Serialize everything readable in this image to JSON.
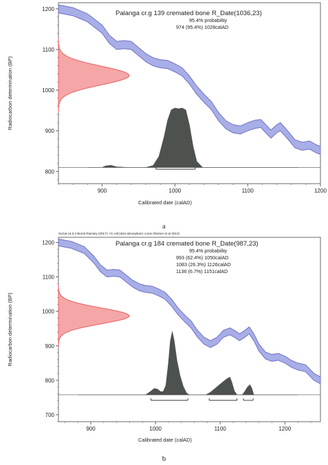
{
  "chart_data": [
    {
      "type": "area",
      "panel_caption": "a",
      "header_note": "",
      "title": "Palanga cr.g 139 cremated bone R_Date(1036,23)",
      "probability_label": "95.4% probability",
      "ranges_text": [
        "974 (95.4%) 1028calAD"
      ],
      "ranges": [
        {
          "from": 974,
          "to": 1028
        }
      ],
      "xlabel": "Calibrated date (calAD)",
      "ylabel": "Radiocarbon determination (BP)",
      "xlim": [
        840,
        1200
      ],
      "ylim": [
        770,
        1215
      ],
      "xticks": [
        900,
        1000,
        1100,
        1200
      ],
      "yticks": [
        800,
        900,
        1000,
        1100,
        1200
      ],
      "c14_date": {
        "mean": 1036,
        "sd": 23
      },
      "calibration_curve": [
        [
          840,
          1200
        ],
        [
          860,
          1193
        ],
        [
          880,
          1178
        ],
        [
          900,
          1150
        ],
        [
          910,
          1125
        ],
        [
          920,
          1110
        ],
        [
          930,
          1112
        ],
        [
          940,
          1110
        ],
        [
          950,
          1095
        ],
        [
          960,
          1080
        ],
        [
          970,
          1070
        ],
        [
          980,
          1065
        ],
        [
          990,
          1063
        ],
        [
          1000,
          1055
        ],
        [
          1010,
          1045
        ],
        [
          1020,
          1025
        ],
        [
          1030,
          1000
        ],
        [
          1040,
          980
        ],
        [
          1050,
          962
        ],
        [
          1060,
          935
        ],
        [
          1070,
          915
        ],
        [
          1080,
          905
        ],
        [
          1090,
          902
        ],
        [
          1100,
          910
        ],
        [
          1110,
          916
        ],
        [
          1118,
          918
        ],
        [
          1125,
          905
        ],
        [
          1132,
          892
        ],
        [
          1140,
          905
        ],
        [
          1145,
          910
        ],
        [
          1155,
          890
        ],
        [
          1165,
          868
        ],
        [
          1175,
          862
        ],
        [
          1185,
          865
        ],
        [
          1195,
          855
        ],
        [
          1200,
          852
        ]
      ],
      "curve_band_bp": 10,
      "calibrated_distribution": [
        [
          840,
          0
        ],
        [
          900,
          0
        ],
        [
          905,
          0.025
        ],
        [
          912,
          0.035
        ],
        [
          920,
          0.01
        ],
        [
          935,
          0
        ],
        [
          960,
          0
        ],
        [
          970,
          0.03
        ],
        [
          978,
          0.18
        ],
        [
          985,
          0.5
        ],
        [
          990,
          0.78
        ],
        [
          995,
          0.95
        ],
        [
          1000,
          0.98
        ],
        [
          1005,
          0.97
        ],
        [
          1010,
          0.98
        ],
        [
          1015,
          0.95
        ],
        [
          1020,
          0.7
        ],
        [
          1025,
          0.35
        ],
        [
          1030,
          0.1
        ],
        [
          1038,
          0
        ],
        [
          1200,
          0
        ]
      ],
      "colors": {
        "curve": "#7070c8",
        "curve_fill": "#a8aee6",
        "radiocarbon": "#e85f5f",
        "radiocarbon_fill": "#f5a6a6",
        "distribution": "#4e524e"
      }
    },
    {
      "type": "area",
      "panel_caption": "b",
      "header_note": "OxCal v4.3.2 Bronk Ramsey (2017); r:5; IntCal13 atmospheric curve (Reimer et al 2013)",
      "title": "Palanga cr.g 184 cremated bone R_Date(987,23)",
      "probability_label": "95.4% probability",
      "ranges_text": [
        "993 (62.4%) 1050calAD",
        "1083 (26.3%) 1126calAD",
        "1136 (6.7%) 1151calAD"
      ],
      "ranges": [
        {
          "from": 993,
          "to": 1050
        },
        {
          "from": 1083,
          "to": 1126
        },
        {
          "from": 1136,
          "to": 1151
        }
      ],
      "xlabel": "Calibrated date (calAD)",
      "ylabel": "Radiocarbon determination (BP)",
      "xlim": [
        850,
        1255
      ],
      "ylim": [
        680,
        1215
      ],
      "xticks": [
        900,
        1000,
        1100,
        1200
      ],
      "yticks": [
        700,
        800,
        900,
        1000,
        1100,
        1200
      ],
      "c14_date": {
        "mean": 987,
        "sd": 23
      },
      "calibration_curve": [
        [
          850,
          1200
        ],
        [
          870,
          1193
        ],
        [
          890,
          1178
        ],
        [
          905,
          1150
        ],
        [
          915,
          1125
        ],
        [
          925,
          1110
        ],
        [
          935,
          1112
        ],
        [
          945,
          1110
        ],
        [
          955,
          1095
        ],
        [
          965,
          1080
        ],
        [
          975,
          1070
        ],
        [
          985,
          1065
        ],
        [
          995,
          1063
        ],
        [
          1005,
          1055
        ],
        [
          1015,
          1045
        ],
        [
          1025,
          1025
        ],
        [
          1035,
          1000
        ],
        [
          1045,
          980
        ],
        [
          1055,
          962
        ],
        [
          1065,
          935
        ],
        [
          1075,
          915
        ],
        [
          1085,
          905
        ],
        [
          1095,
          915
        ],
        [
          1105,
          935
        ],
        [
          1115,
          942
        ],
        [
          1122,
          935
        ],
        [
          1130,
          925
        ],
        [
          1138,
          935
        ],
        [
          1145,
          945
        ],
        [
          1152,
          925
        ],
        [
          1160,
          895
        ],
        [
          1170,
          872
        ],
        [
          1180,
          865
        ],
        [
          1190,
          868
        ],
        [
          1200,
          860
        ],
        [
          1210,
          848
        ],
        [
          1220,
          840
        ],
        [
          1232,
          835
        ],
        [
          1245,
          810
        ],
        [
          1255,
          800
        ]
      ],
      "curve_band_bp": 10,
      "calibrated_distribution": [
        [
          850,
          0
        ],
        [
          985,
          0
        ],
        [
          992,
          0.05
        ],
        [
          998,
          0.1
        ],
        [
          1003,
          0.09
        ],
        [
          1008,
          0.05
        ],
        [
          1012,
          0.05
        ],
        [
          1016,
          0.15
        ],
        [
          1020,
          0.5
        ],
        [
          1023,
          0.85
        ],
        [
          1026,
          1.0
        ],
        [
          1029,
          0.85
        ],
        [
          1033,
          0.55
        ],
        [
          1038,
          0.3
        ],
        [
          1043,
          0.13
        ],
        [
          1048,
          0.03
        ],
        [
          1052,
          0
        ],
        [
          1078,
          0
        ],
        [
          1085,
          0.04
        ],
        [
          1092,
          0.1
        ],
        [
          1098,
          0.15
        ],
        [
          1104,
          0.2
        ],
        [
          1110,
          0.25
        ],
        [
          1115,
          0.28
        ],
        [
          1118,
          0.2
        ],
        [
          1122,
          0.06
        ],
        [
          1126,
          0
        ],
        [
          1134,
          0
        ],
        [
          1138,
          0.05
        ],
        [
          1142,
          0.12
        ],
        [
          1146,
          0.16
        ],
        [
          1149,
          0.1
        ],
        [
          1152,
          0
        ],
        [
          1255,
          0
        ]
      ],
      "colors": {
        "curve": "#7070c8",
        "curve_fill": "#a8aee6",
        "radiocarbon": "#e85f5f",
        "radiocarbon_fill": "#f5a6a6",
        "distribution": "#4e524e"
      }
    }
  ]
}
